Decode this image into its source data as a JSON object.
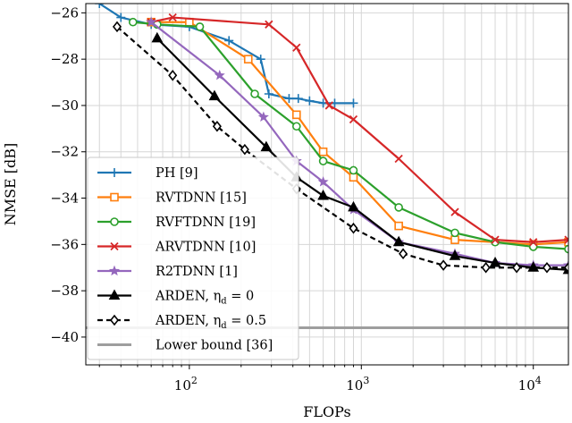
{
  "chart_data": {
    "type": "line",
    "xlabel": "FLOPs",
    "ylabel": "NMSE [dB]",
    "xscale": "log",
    "xlim": [
      25,
      16000
    ],
    "ylim": [
      -41.2,
      -25.6
    ],
    "x_ticks": [
      {
        "value": 100,
        "base": "10",
        "exp": "2"
      },
      {
        "value": 1000,
        "base": "10",
        "exp": "3"
      },
      {
        "value": 10000,
        "base": "10",
        "exp": "4"
      }
    ],
    "y_ticks": [
      {
        "value": -26,
        "label": "−26"
      },
      {
        "value": -28,
        "label": "−28"
      },
      {
        "value": -30,
        "label": "−30"
      },
      {
        "value": -32,
        "label": "−32"
      },
      {
        "value": -34,
        "label": "−34"
      },
      {
        "value": -36,
        "label": "−36"
      },
      {
        "value": -38,
        "label": "−38"
      },
      {
        "value": -40,
        "label": "−40"
      }
    ],
    "grid": true,
    "legend_position": "bottom-left",
    "series": [
      {
        "name": "PH [9]",
        "color": "#1f77b4",
        "marker": "plus",
        "dash": false,
        "points": [
          [
            30,
            -25.6
          ],
          [
            40,
            -26.2
          ],
          [
            60,
            -26.5
          ],
          [
            100,
            -26.6
          ],
          [
            170,
            -27.2
          ],
          [
            260,
            -28.0
          ],
          [
            290,
            -29.5
          ],
          [
            380,
            -29.7
          ],
          [
            430,
            -29.7
          ],
          [
            500,
            -29.8
          ],
          [
            600,
            -29.9
          ],
          [
            700,
            -29.9
          ],
          [
            900,
            -29.9
          ]
        ]
      },
      {
        "name": "RVTDNN [15]",
        "color": "#ff7f0e",
        "marker": "square",
        "dash": false,
        "points": [
          [
            60,
            -26.4
          ],
          [
            100,
            -26.4
          ],
          [
            220,
            -28.0
          ],
          [
            420,
            -30.4
          ],
          [
            600,
            -32.0
          ],
          [
            900,
            -33.1
          ],
          [
            1650,
            -35.2
          ],
          [
            3500,
            -35.8
          ],
          [
            10000,
            -36.0
          ],
          [
            16000,
            -35.9
          ]
        ]
      },
      {
        "name": "RVFTDNN [19]",
        "color": "#2ca02c",
        "marker": "circle",
        "dash": false,
        "points": [
          [
            47,
            -26.4
          ],
          [
            65,
            -26.5
          ],
          [
            115,
            -26.6
          ],
          [
            240,
            -29.5
          ],
          [
            420,
            -30.9
          ],
          [
            600,
            -32.4
          ],
          [
            900,
            -32.8
          ],
          [
            1650,
            -34.4
          ],
          [
            3500,
            -35.5
          ],
          [
            6000,
            -35.9
          ],
          [
            10000,
            -36.1
          ],
          [
            16000,
            -36.2
          ]
        ]
      },
      {
        "name": "ARVTDNN [10]",
        "color": "#d62728",
        "marker": "x",
        "dash": false,
        "points": [
          [
            60,
            -26.4
          ],
          [
            80,
            -26.2
          ],
          [
            290,
            -26.5
          ],
          [
            420,
            -27.5
          ],
          [
            650,
            -30.0
          ],
          [
            900,
            -30.6
          ],
          [
            1650,
            -32.3
          ],
          [
            3500,
            -34.6
          ],
          [
            6000,
            -35.8
          ],
          [
            10000,
            -35.9
          ],
          [
            16000,
            -35.8
          ]
        ]
      },
      {
        "name": "R2TDNN [1]",
        "color": "#9467bd",
        "marker": "star",
        "dash": false,
        "points": [
          [
            60,
            -26.4
          ],
          [
            150,
            -28.7
          ],
          [
            270,
            -30.5
          ],
          [
            420,
            -32.4
          ],
          [
            600,
            -33.3
          ],
          [
            900,
            -34.5
          ],
          [
            1650,
            -35.9
          ],
          [
            3500,
            -36.4
          ],
          [
            6000,
            -36.8
          ],
          [
            10000,
            -36.9
          ],
          [
            16000,
            -36.9
          ]
        ]
      },
      {
        "name": "ARDEN, η_d = 0",
        "color": "#000000",
        "marker": "triangle",
        "dash": false,
        "points": [
          [
            65,
            -27.1
          ],
          [
            140,
            -29.6
          ],
          [
            280,
            -31.8
          ],
          [
            420,
            -33.1
          ],
          [
            600,
            -33.9
          ],
          [
            900,
            -34.4
          ],
          [
            1650,
            -35.9
          ],
          [
            3500,
            -36.5
          ],
          [
            6000,
            -36.8
          ],
          [
            10000,
            -37.0
          ],
          [
            16000,
            -37.1
          ]
        ]
      },
      {
        "name": "ARDEN, η_d = 0.5",
        "color": "#000000",
        "marker": "diamond",
        "dash": true,
        "points": [
          [
            38,
            -26.6
          ],
          [
            80,
            -28.7
          ],
          [
            145,
            -30.9
          ],
          [
            210,
            -31.9
          ],
          [
            420,
            -33.6
          ],
          [
            900,
            -35.3
          ],
          [
            1750,
            -36.4
          ],
          [
            3000,
            -36.9
          ],
          [
            5300,
            -37.0
          ],
          [
            8000,
            -37.0
          ],
          [
            12000,
            -37.0
          ],
          [
            16000,
            -37.0
          ]
        ]
      },
      {
        "name": "Lower bound [36]",
        "color": "#9e9e9e",
        "marker": "none",
        "dash": false,
        "width": 3,
        "points": [
          [
            25,
            -39.6
          ],
          [
            16000,
            -39.6
          ]
        ]
      }
    ]
  }
}
